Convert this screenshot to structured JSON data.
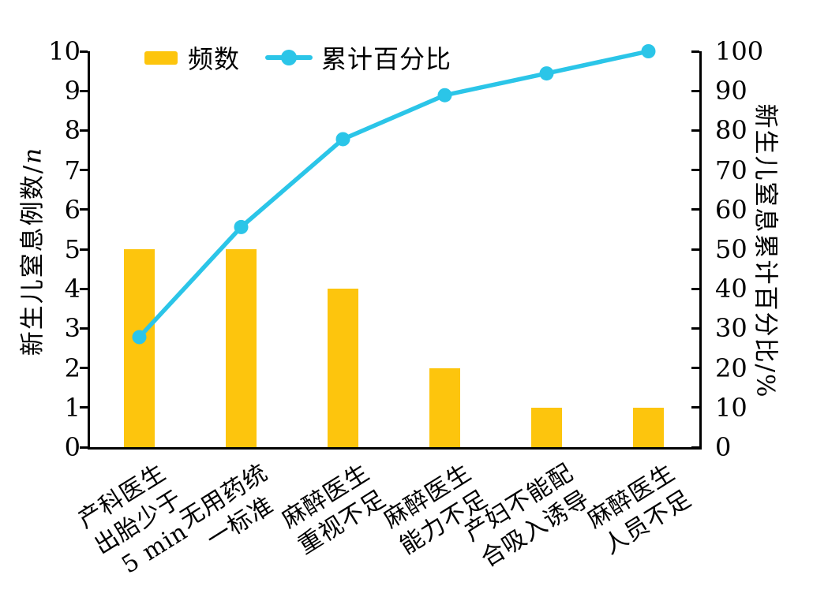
{
  "chart_data": {
    "type": "bar",
    "subtype": "pareto-bar-line-combo",
    "categories": [
      "产科医生出胎少于5 min",
      "无用药统一标准",
      "麻醉医生重视不足",
      "麻醉医生能力不足",
      "产妇不能配合吸入诱导",
      "麻醉医生人员不足"
    ],
    "category_lines": [
      [
        "产科医生",
        "出胎少于",
        "5 min"
      ],
      [
        "无用药统",
        "一标准"
      ],
      [
        "麻醉医生",
        "重视不足"
      ],
      [
        "麻醉医生",
        "能力不足"
      ],
      [
        "产妇不能配",
        "合吸入诱导"
      ],
      [
        "麻醉医生",
        "人员不足"
      ]
    ],
    "series": [
      {
        "name": "频数",
        "type": "bar",
        "axis": "left",
        "color": "#FDC50D",
        "values": [
          5,
          5,
          4,
          2,
          1,
          1
        ]
      },
      {
        "name": "累计百分比",
        "type": "line",
        "axis": "right",
        "color": "#2BC5E8",
        "values": [
          27.8,
          55.6,
          77.8,
          88.9,
          94.4,
          100
        ]
      }
    ],
    "left_axis": {
      "label_text": "新生儿窒息例数/",
      "label_var": "n",
      "min": 0,
      "max": 10,
      "tick_step": 1
    },
    "right_axis": {
      "label_text": "新生儿窒息累计百分比/%",
      "min": 0,
      "max": 100,
      "tick_step": 10
    },
    "legend": {
      "position": "top-left-inside",
      "items": [
        "频数",
        "累计百分比"
      ]
    },
    "grid": false,
    "colors": {
      "axis": "#000000",
      "background": "#ffffff"
    }
  }
}
